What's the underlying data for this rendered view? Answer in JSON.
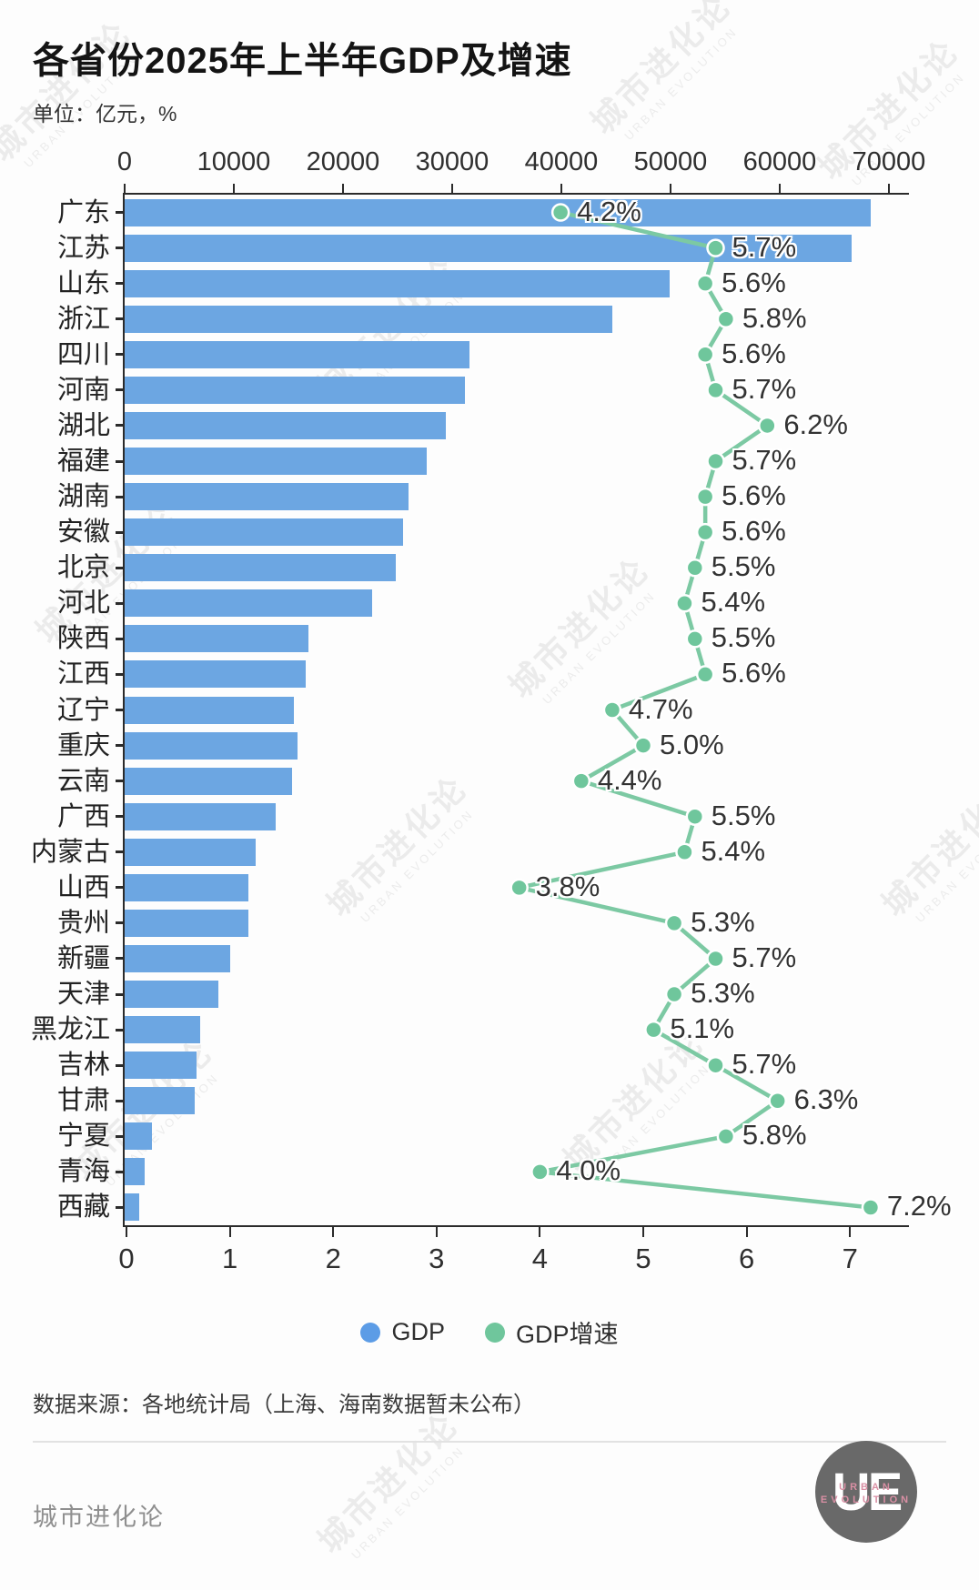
{
  "title": "各省份2025年上半年GDP及增速",
  "subtitle": "单位：亿元，%",
  "source": "数据来源：各地统计局（上海、海南数据暂未公布）",
  "legend": [
    {
      "label": "GDP",
      "color": "#5C9CE6"
    },
    {
      "label": "GDP增速",
      "color": "#6FC69C"
    }
  ],
  "footer": {
    "brand": "城市进化论",
    "logo_text": "UE",
    "logo_sub1": "URBAN",
    "logo_sub2": "EVOLUTION"
  },
  "watermark": {
    "line1": "城市进化论",
    "line2": "URBAN EVOLUTION"
  },
  "colors": {
    "bar": "#6CA6E2",
    "line": "#7CC9A3",
    "marker_fill": "#6FC69C",
    "marker_edge": "#FFFFFF",
    "axis": "#2B2B2B",
    "pct_text": "#333333"
  },
  "chart_data": {
    "type": "bar+line",
    "title": "各省份2025年上半年GDP及增速",
    "unit_note": "单位：亿元，%",
    "categories": [
      "广东",
      "江苏",
      "山东",
      "浙江",
      "四川",
      "河南",
      "湖北",
      "福建",
      "湖南",
      "安徽",
      "北京",
      "河北",
      "陕西",
      "江西",
      "辽宁",
      "重庆",
      "云南",
      "广西",
      "内蒙古",
      "山西",
      "贵州",
      "新疆",
      "天津",
      "黑龙江",
      "吉林",
      "甘肃",
      "宁夏",
      "青海",
      "西藏"
    ],
    "series": [
      {
        "name": "GDP",
        "type": "bar",
        "unit": "亿元",
        "axis": "top",
        "values": [
          68300,
          66600,
          49900,
          44700,
          31600,
          31200,
          29400,
          27700,
          26000,
          25500,
          24800,
          22700,
          16800,
          16600,
          15500,
          15800,
          15300,
          13800,
          12000,
          11300,
          11350,
          9700,
          8600,
          6900,
          6600,
          6400,
          2500,
          1800,
          1300
        ]
      },
      {
        "name": "GDP增速",
        "type": "line",
        "unit": "%",
        "axis": "bottom",
        "values": [
          4.2,
          5.7,
          5.6,
          5.8,
          5.6,
          5.7,
          6.2,
          5.7,
          5.6,
          5.6,
          5.5,
          5.4,
          5.5,
          5.6,
          4.7,
          5.0,
          4.4,
          5.5,
          5.4,
          3.8,
          5.3,
          5.7,
          5.3,
          5.1,
          5.7,
          6.3,
          5.8,
          4.0,
          7.2
        ],
        "labels": [
          "4.2%",
          "5.7%",
          "5.6%",
          "5.8%",
          "5.6%",
          "5.7%",
          "6.2%",
          "5.7%",
          "5.6%",
          "5.6%",
          "5.5%",
          "5.4%",
          "5.5%",
          "5.6%",
          "4.7%",
          "5.0%",
          "4.4%",
          "5.5%",
          "5.4%",
          "3.8%",
          "5.3%",
          "5.7%",
          "5.3%",
          "5.1%",
          "5.7%",
          "6.3%",
          "5.8%",
          "4.0%",
          "7.2%"
        ]
      }
    ],
    "gdp_axis": {
      "range": [
        0,
        70000
      ],
      "ticks": [
        "0",
        "10000",
        "20000",
        "30000",
        "40000",
        "50000",
        "60000",
        "70000"
      ],
      "position": "top"
    },
    "growth_axis": {
      "range": [
        0,
        7
      ],
      "ticks": [
        "0",
        "1",
        "2",
        "3",
        "4",
        "5",
        "6",
        "7"
      ],
      "position": "bottom"
    },
    "legend_position": "bottom",
    "grid": false
  }
}
